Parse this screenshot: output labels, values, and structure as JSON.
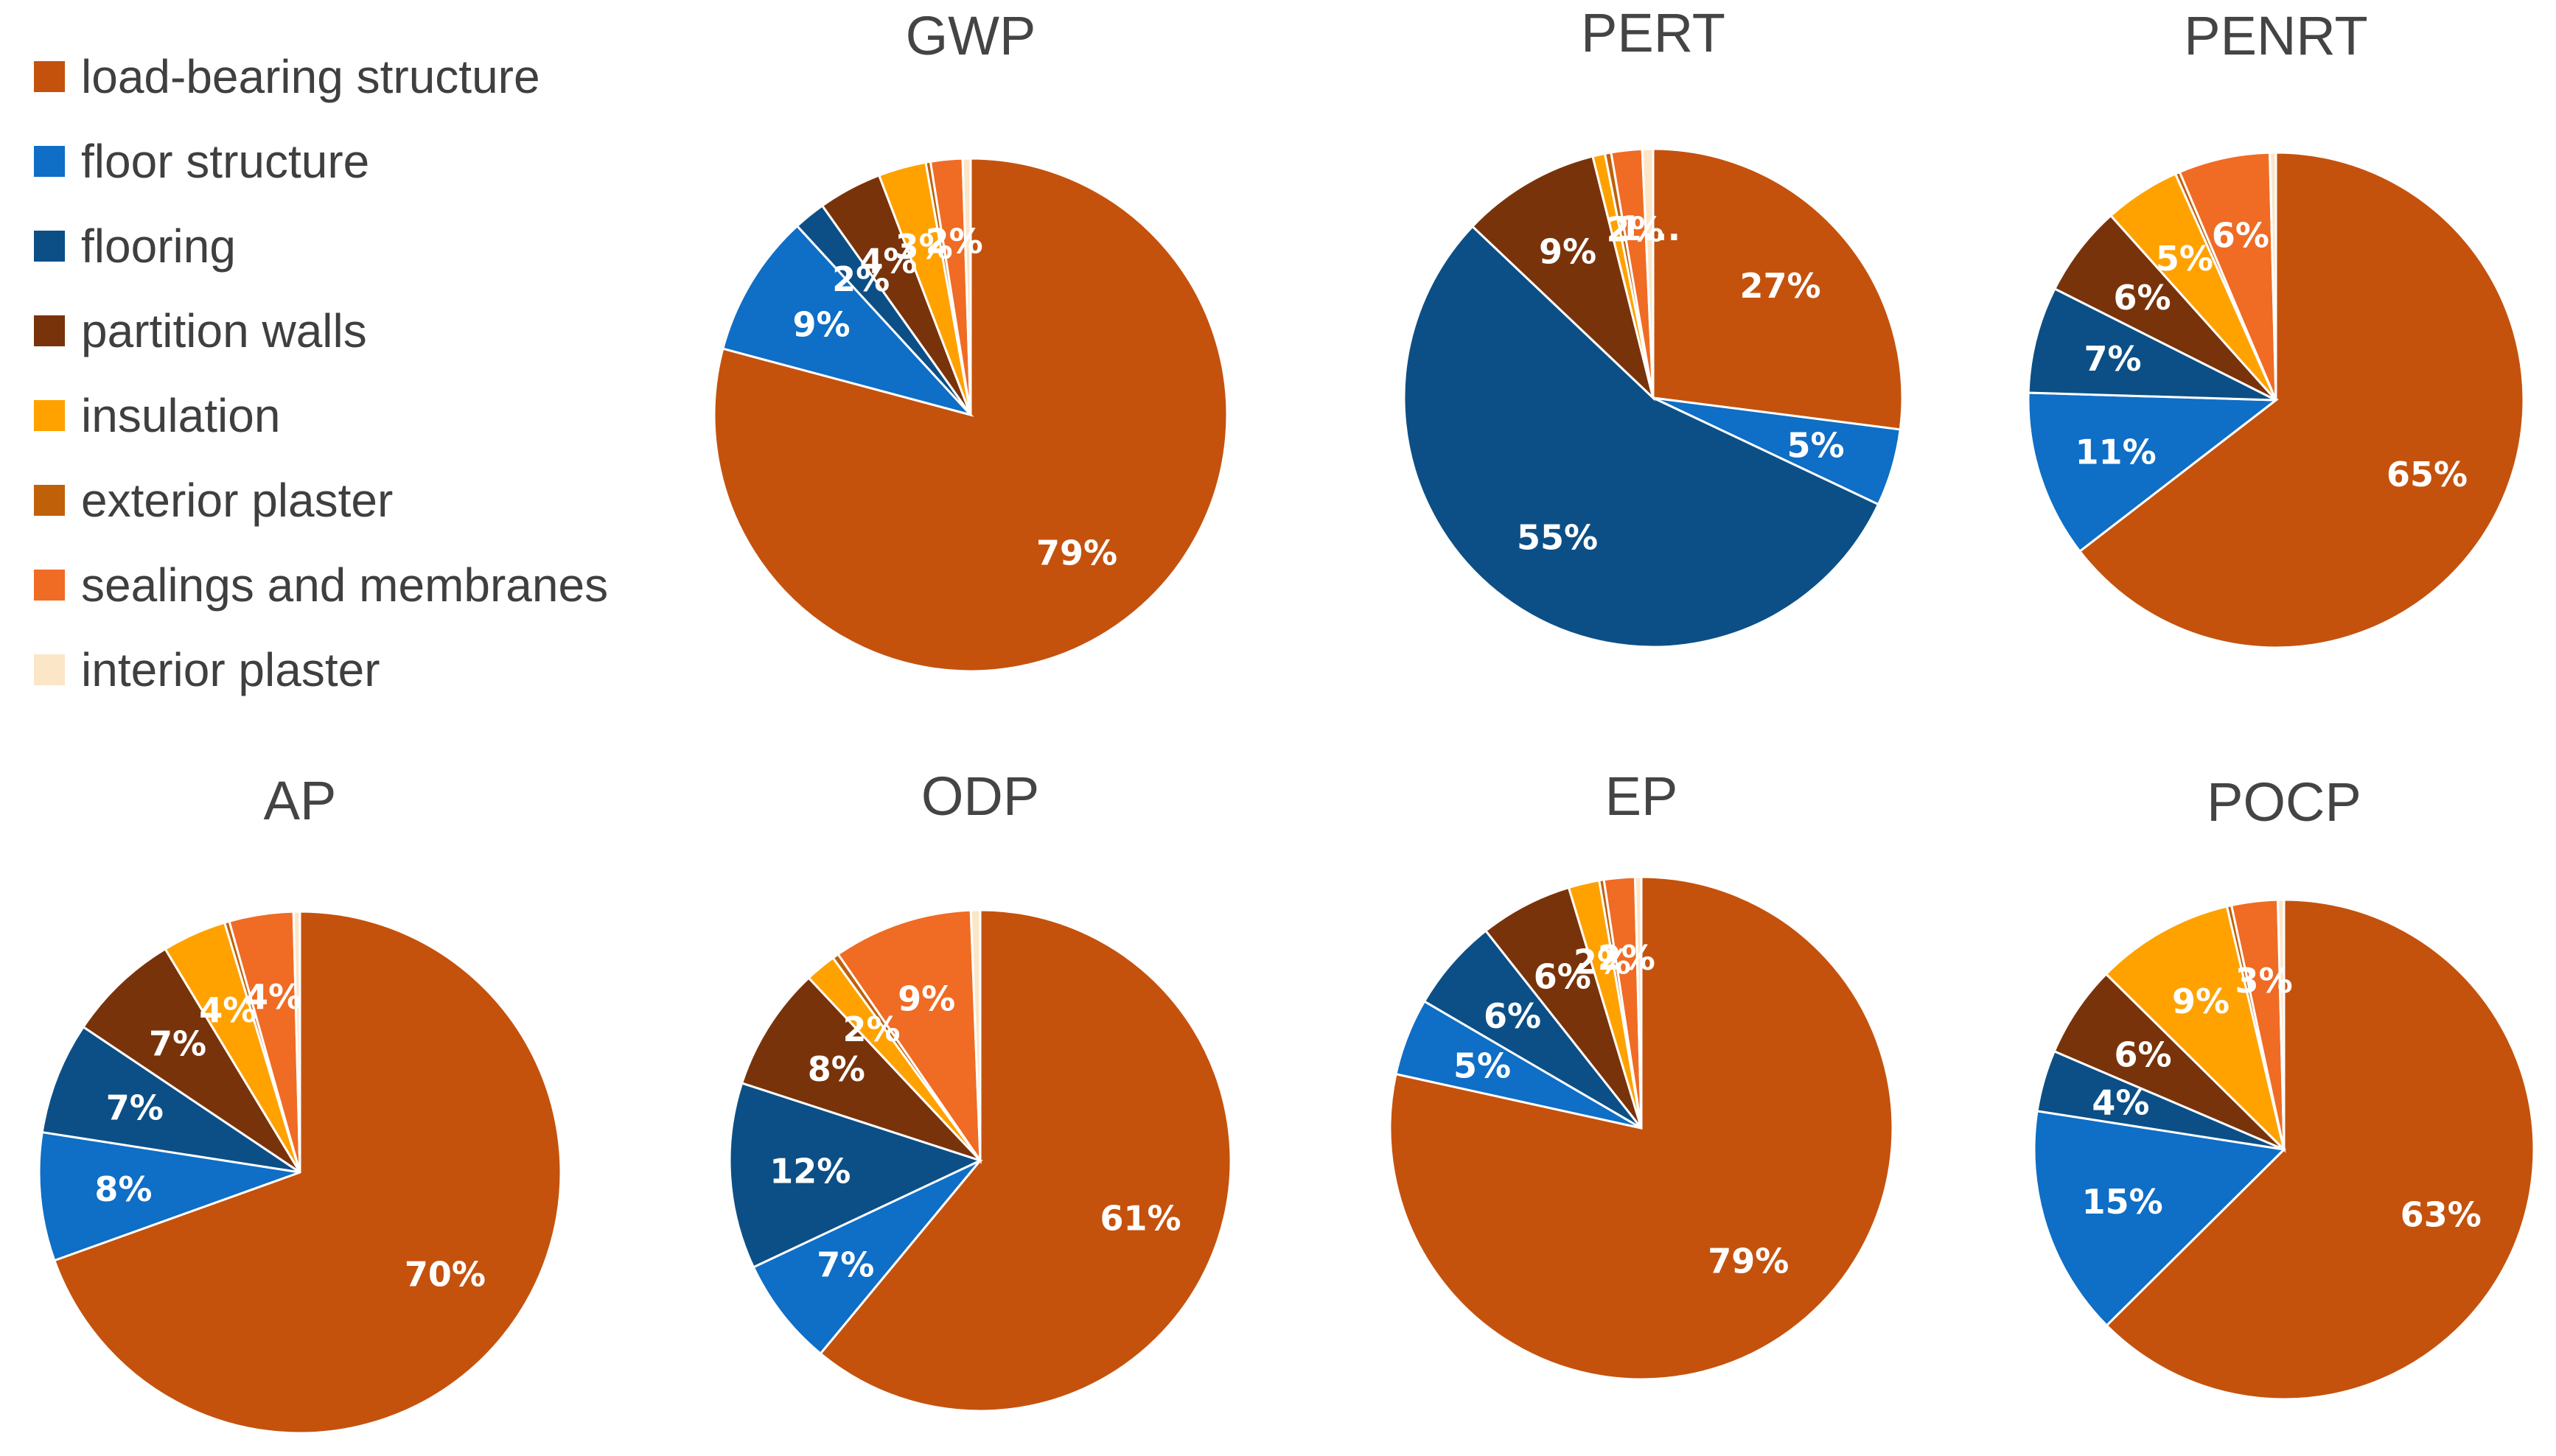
{
  "legend": [
    {
      "name": "load-bearing structure",
      "color": "#C4520D"
    },
    {
      "name": "floor structure",
      "color": "#0F6EC6"
    },
    {
      "name": "flooring",
      "color": "#0C4F86"
    },
    {
      "name": "partition walls",
      "color": "#79330A"
    },
    {
      "name": "insulation",
      "color": "#FFA200"
    },
    {
      "name": "exterior plaster",
      "color": "#C0610A"
    },
    {
      "name": "sealings and membranes",
      "color": "#F06B23"
    },
    {
      "name": "interior plaster",
      "color": "#FCE6C8"
    }
  ],
  "chart_data": [
    {
      "type": "pie",
      "title": "GWP",
      "categories": [
        "load-bearing structure",
        "floor structure",
        "flooring",
        "partition walls",
        "insulation",
        "exterior plaster",
        "sealings and membranes",
        "interior plaster"
      ],
      "values": [
        79,
        9,
        2,
        4,
        3,
        0.3,
        2,
        0.5
      ],
      "labels": [
        "79%",
        "9%",
        "2%",
        "4%",
        "3%",
        "",
        "2%",
        ""
      ]
    },
    {
      "type": "pie",
      "title": "PERT",
      "categories": [
        "load-bearing structure",
        "floor structure",
        "flooring",
        "partition walls",
        "insulation",
        "exterior plaster",
        "sealings and membranes",
        "interior plaster"
      ],
      "values": [
        27,
        5,
        55,
        9,
        0.8,
        0.4,
        2,
        0.7
      ],
      "labels": [
        "27%",
        "5%",
        "55%",
        "9%",
        "",
        "",
        "2%",
        "1..."
      ]
    },
    {
      "type": "pie",
      "title": "PENRT",
      "categories": [
        "load-bearing structure",
        "floor structure",
        "flooring",
        "partition walls",
        "insulation",
        "exterior plaster",
        "sealings and membranes",
        "interior plaster"
      ],
      "values": [
        65,
        11,
        7,
        6,
        5,
        0.3,
        6,
        0.4
      ],
      "labels": [
        "65%",
        "11%",
        "7%",
        "6%",
        "5%",
        "",
        "6%",
        ""
      ]
    },
    {
      "type": "pie",
      "title": "AP",
      "categories": [
        "load-bearing structure",
        "floor structure",
        "flooring",
        "partition walls",
        "insulation",
        "exterior plaster",
        "sealings and membranes",
        "interior plaster"
      ],
      "values": [
        70,
        8,
        7,
        7,
        4,
        0.3,
        4,
        0.4
      ],
      "labels": [
        "70%",
        "8%",
        "7%",
        "7%",
        "4%",
        "",
        "4%",
        ""
      ]
    },
    {
      "type": "pie",
      "title": "ODP",
      "categories": [
        "load-bearing structure",
        "floor structure",
        "flooring",
        "partition walls",
        "insulation",
        "exterior plaster",
        "sealings and membranes",
        "interior plaster"
      ],
      "values": [
        61,
        7,
        12,
        8,
        2,
        0.4,
        9,
        0.6
      ],
      "labels": [
        "61%",
        "7%",
        "12%",
        "8%",
        "2%",
        "",
        "9%",
        ""
      ]
    },
    {
      "type": "pie",
      "title": "EP",
      "categories": [
        "load-bearing structure",
        "floor structure",
        "flooring",
        "partition walls",
        "insulation",
        "exterior plaster",
        "sealings and membranes",
        "interior plaster"
      ],
      "values": [
        79,
        5,
        6,
        6,
        2,
        0.3,
        2,
        0.4
      ],
      "labels": [
        "79%",
        "5%",
        "6%",
        "6%",
        "2%",
        "",
        "2%",
        ""
      ]
    },
    {
      "type": "pie",
      "title": "POCP",
      "categories": [
        "load-bearing structure",
        "floor structure",
        "flooring",
        "partition walls",
        "insulation",
        "exterior plaster",
        "sealings and membranes",
        "interior plaster"
      ],
      "values": [
        63,
        15,
        4,
        6,
        9,
        0.3,
        3,
        0.4
      ],
      "labels": [
        "63%",
        "15%",
        "4%",
        "6%",
        "9%",
        "",
        "3%",
        ""
      ]
    }
  ]
}
